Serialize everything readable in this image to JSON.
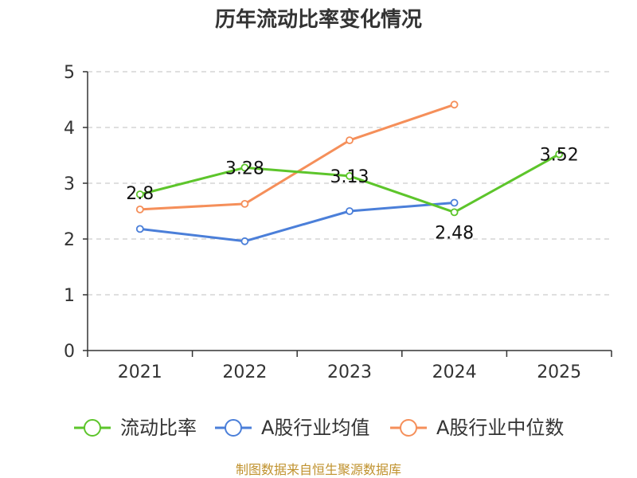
{
  "chart_data": {
    "type": "line",
    "title": "历年流动比率变化情况",
    "categories": [
      "2021",
      "2022",
      "2023",
      "2024",
      "2025"
    ],
    "ylim": [
      0,
      5
    ],
    "yticks": [
      0,
      1,
      2,
      3,
      4,
      5
    ],
    "grid": true,
    "legend_position": "bottom",
    "series": [
      {
        "name": "流动比率",
        "color": "#5dc52b",
        "values": [
          2.8,
          3.28,
          3.13,
          2.48,
          3.52
        ],
        "labels": [
          "2.8",
          "3.28",
          "3.13",
          "2.48",
          "3.52"
        ]
      },
      {
        "name": "A股行业均值",
        "color": "#4b7fd9",
        "values": [
          2.18,
          1.96,
          2.5,
          2.65,
          null
        ]
      },
      {
        "name": "A股行业中位数",
        "color": "#f58f5a",
        "values": [
          2.53,
          2.63,
          3.77,
          4.41,
          null
        ]
      }
    ],
    "source": "制图数据来自恒生聚源数据库"
  }
}
